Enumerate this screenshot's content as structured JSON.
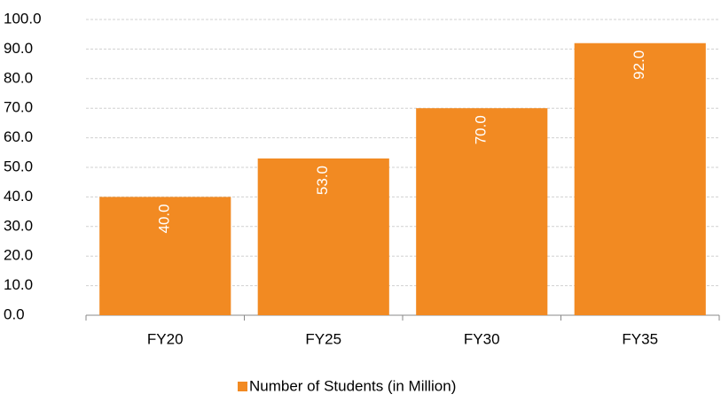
{
  "chart_data": {
    "type": "bar",
    "categories": [
      "FY20",
      "FY25",
      "FY30",
      "FY35"
    ],
    "series": [
      {
        "name": "Number of Students (in Million)",
        "color": "#f28a22",
        "values": [
          40,
          53,
          70,
          92
        ],
        "value_labels": [
          "40.0",
          "53.0",
          "70.0",
          "92.0"
        ]
      }
    ],
    "ylim": [
      0,
      100
    ],
    "yticks": [
      {
        "value": 0,
        "label": "0.0"
      },
      {
        "value": 10,
        "label": "10.0"
      },
      {
        "value": 20,
        "label": "20.0"
      },
      {
        "value": 30,
        "label": "30.0"
      },
      {
        "value": 40,
        "label": "40.0"
      },
      {
        "value": 50,
        "label": "50.0"
      },
      {
        "value": 60,
        "label": "60.0"
      },
      {
        "value": 70,
        "label": "70.0"
      },
      {
        "value": 80,
        "label": "80.0"
      },
      {
        "value": 90,
        "label": "90.0"
      },
      {
        "value": 100,
        "label": "100.0"
      }
    ],
    "grid": true,
    "legend": "bottom"
  }
}
